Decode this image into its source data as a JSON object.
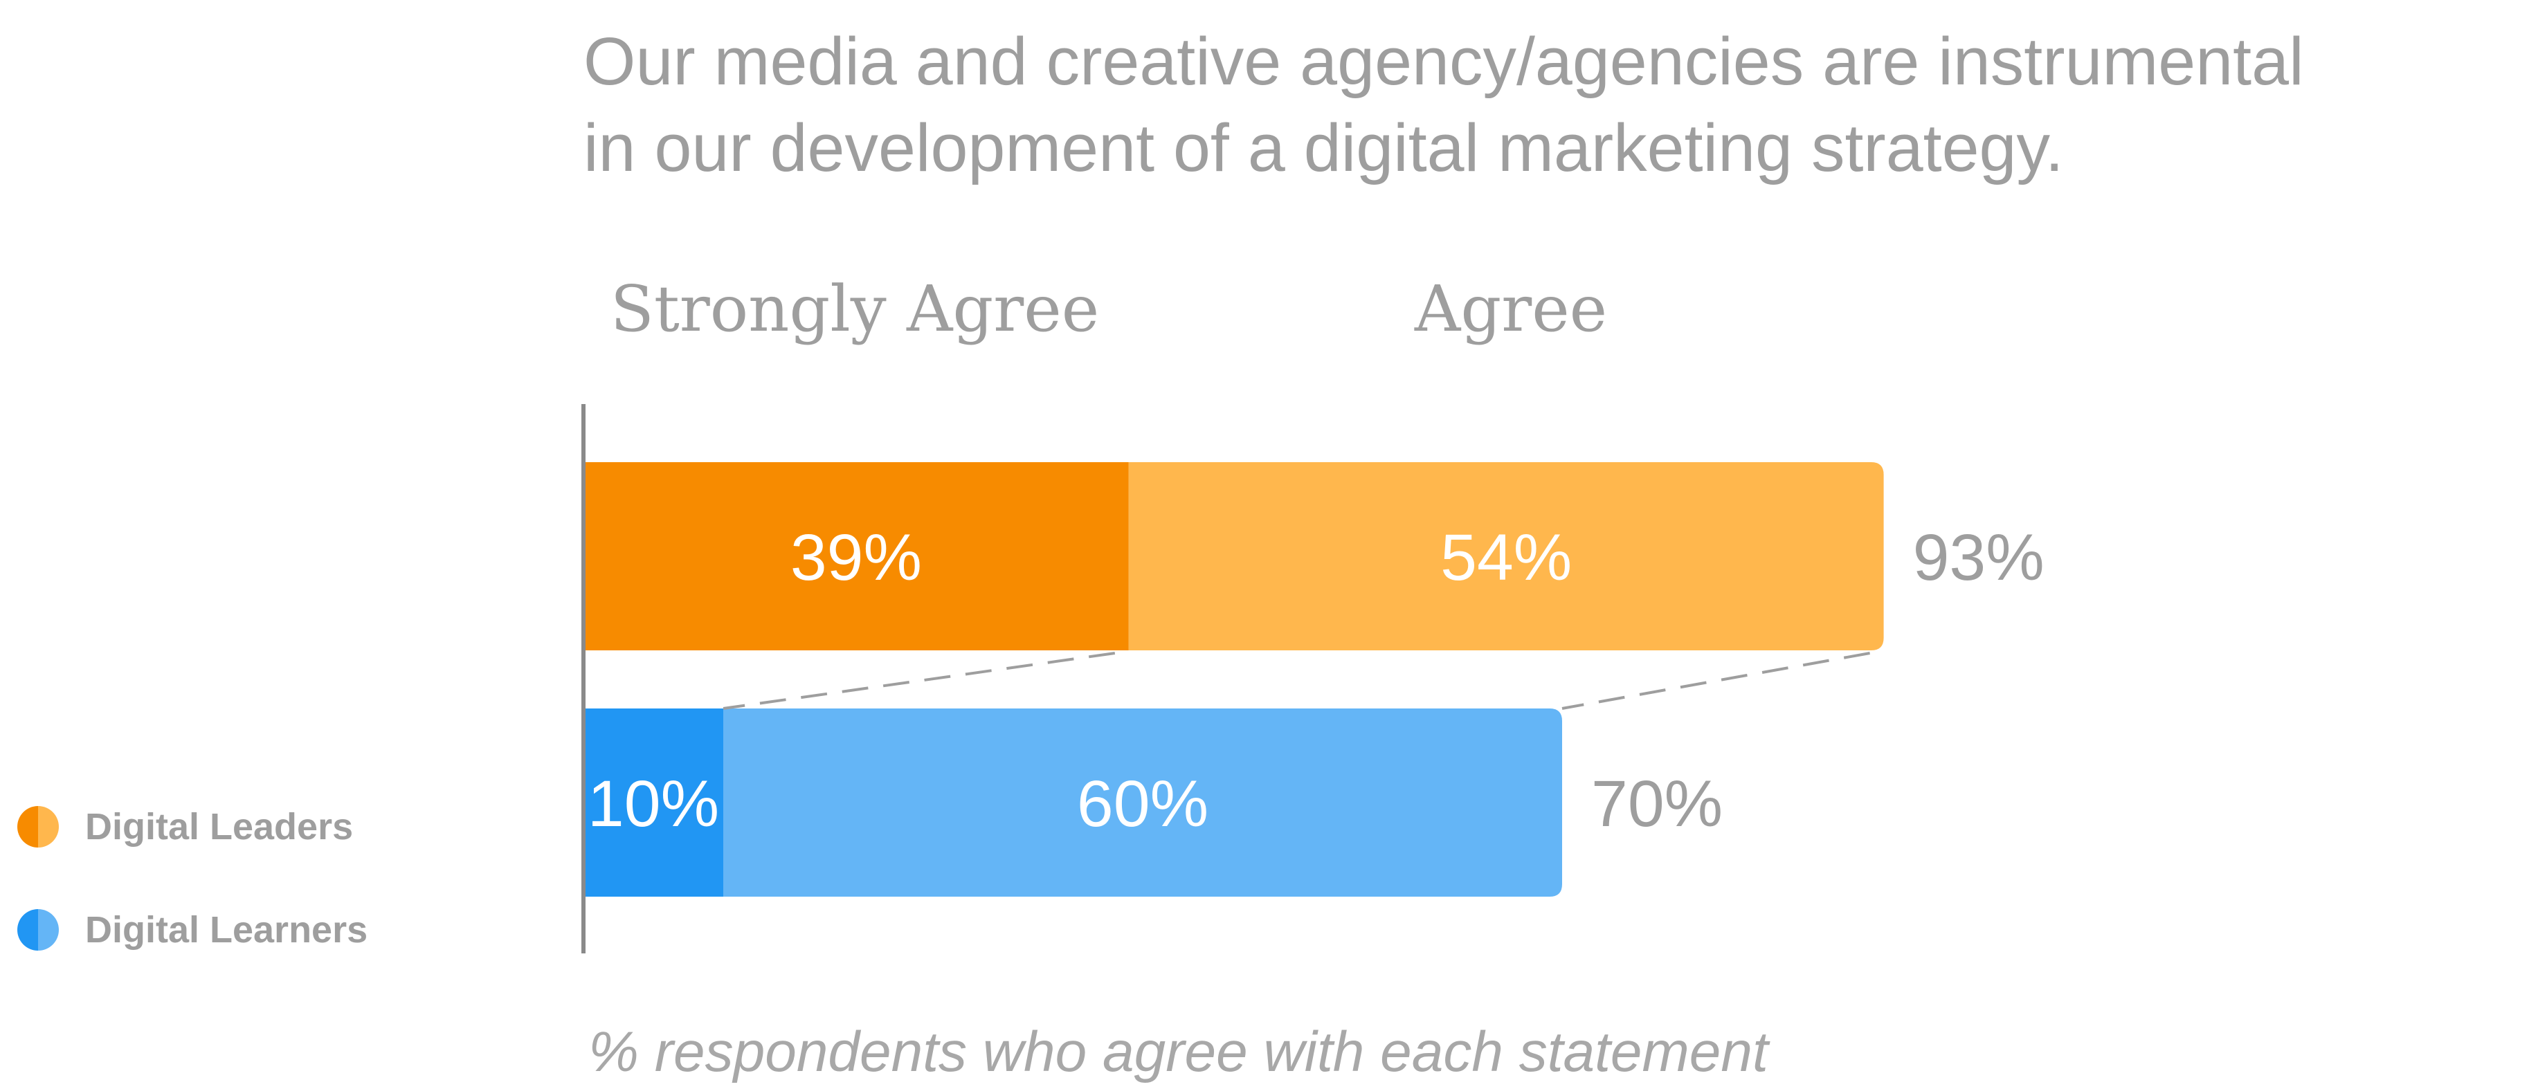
{
  "chart_data": {
    "type": "bar",
    "orientation": "horizontal",
    "stacked": true,
    "title": "Our media and creative agency/agencies are instrumental in our development of a digital marketing strategy.",
    "title_lines": [
      "Our media and creative agency/agencies are instrumental",
      "in our development of a digital marketing strategy."
    ],
    "column_headers": [
      "Strongly Agree",
      "Agree"
    ],
    "footnote": "% respondents who agree with each statement",
    "xlim": [
      0,
      100
    ],
    "legend_position": "left",
    "grid": false,
    "rows": [
      {
        "name": "Digital Leaders",
        "segments": [
          {
            "category": "Strongly Agree",
            "value": 39,
            "label": "39%",
            "color": "#F78B00"
          },
          {
            "category": "Agree",
            "value": 54,
            "label": "54%",
            "color": "#FFB74D"
          }
        ],
        "total": 93,
        "total_label": "93%"
      },
      {
        "name": "Digital Learners",
        "segments": [
          {
            "category": "Strongly Agree",
            "value": 10,
            "label": "10%",
            "color": "#2196F3"
          },
          {
            "category": "Agree",
            "value": 60,
            "label": "60%",
            "color": "#64B5F6"
          }
        ],
        "total": 70,
        "total_label": "70%"
      }
    ],
    "legend": [
      {
        "name": "Digital Leaders",
        "colors": [
          "#F78B00",
          "#FFB74D"
        ]
      },
      {
        "name": "Digital Learners",
        "colors": [
          "#2196F3",
          "#64B5F6"
        ]
      }
    ],
    "colors": {
      "axis": "#8a8a8a",
      "connector": "#9e9e9e",
      "text_muted": "#9e9e9e"
    }
  }
}
